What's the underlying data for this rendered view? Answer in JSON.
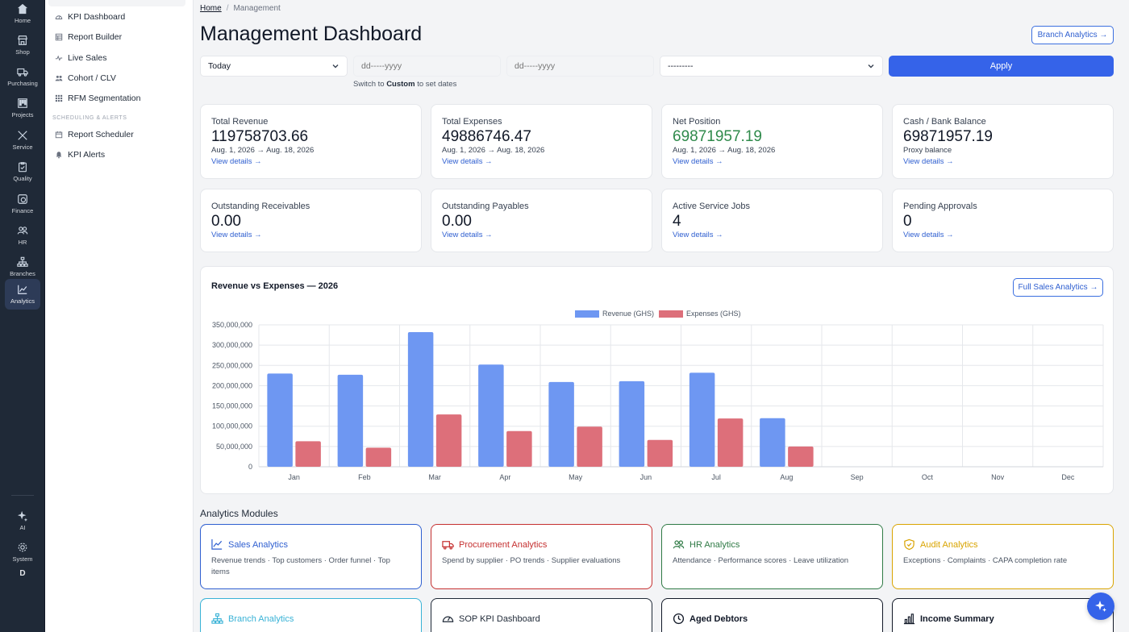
{
  "rail": {
    "items": [
      {
        "label": "Home",
        "icon": "home-icon"
      },
      {
        "label": "Shop",
        "icon": "shop-icon"
      },
      {
        "label": "Purchasing",
        "icon": "truck-icon"
      },
      {
        "label": "Projects",
        "icon": "kanban-icon"
      },
      {
        "label": "Service",
        "icon": "tools-icon"
      },
      {
        "label": "Quality",
        "icon": "clipboard-check-icon"
      },
      {
        "label": "Finance",
        "icon": "finance-icon"
      },
      {
        "label": "HR",
        "icon": "people-icon"
      },
      {
        "label": "Branches",
        "icon": "sitemap-icon"
      },
      {
        "label": "Analytics",
        "icon": "chart-line-icon"
      }
    ],
    "bottom": [
      {
        "label": "AI",
        "icon": "sparkle-icon"
      },
      {
        "label": "System",
        "icon": "gear-icon"
      }
    ],
    "user_initial": "D"
  },
  "subnav": {
    "items": [
      {
        "label": "KPI Dashboard",
        "icon": "gauge-icon"
      },
      {
        "label": "Report Builder",
        "icon": "table-icon"
      },
      {
        "label": "Live Sales",
        "icon": "pulse-icon"
      },
      {
        "label": "Cohort / CLV",
        "icon": "people-icon"
      },
      {
        "label": "RFM Segmentation",
        "icon": "grid-icon"
      }
    ],
    "section_label": "SCHEDULING & ALERTS",
    "section_items": [
      {
        "label": "Report Scheduler",
        "icon": "calendar-icon"
      },
      {
        "label": "KPI Alerts",
        "icon": "bell-icon"
      }
    ]
  },
  "breadcrumb": {
    "home": "Home",
    "current": "Management"
  },
  "page_title": "Management Dashboard",
  "branch_analytics_label": "Branch Analytics →",
  "filters": {
    "period": "Today",
    "date_from_placeholder": "dd-----yyyy",
    "date_to_placeholder": "dd-----yyyy",
    "branch": "---------",
    "apply": "Apply",
    "hint_pre": "Switch to",
    "hint_bold": "Custom",
    "hint_post": "to set dates"
  },
  "kpis": [
    {
      "label": "Total Revenue",
      "value": "119758703.66",
      "sub": "Aug. 1, 2026 → Aug. 18, 2026",
      "link": "View details →"
    },
    {
      "label": "Total Expenses",
      "value": "49886746.47",
      "sub": "Aug. 1, 2026 → Aug. 18, 2026",
      "link": "View details →"
    },
    {
      "label": "Net Position",
      "value": "69871957.19",
      "sub": "Aug. 1, 2026 → Aug. 18, 2026",
      "link": "View details →"
    },
    {
      "label": "Cash / Bank Balance",
      "value": "69871957.19",
      "sub": "Proxy balance",
      "link": "View details →"
    },
    {
      "label": "Outstanding Receivables",
      "value": "0.00",
      "link": "View details →"
    },
    {
      "label": "Outstanding Payables",
      "value": "0.00",
      "link": "View details →"
    },
    {
      "label": "Active Service Jobs",
      "value": "4",
      "link": "View details →"
    },
    {
      "label": "Pending Approvals",
      "value": "0",
      "link": "View details →"
    }
  ],
  "chart": {
    "full_sales_label": "Full Sales Analytics →",
    "colors": {
      "revenue": "#6e97f2",
      "expenses": "#dd6f7a"
    }
  },
  "chart_data": {
    "type": "bar",
    "title": "Revenue vs Expenses — 2026",
    "categories": [
      "Jan",
      "Feb",
      "Mar",
      "Apr",
      "May",
      "Jun",
      "Jul",
      "Aug",
      "Sep",
      "Oct",
      "Nov",
      "Dec"
    ],
    "series": [
      {
        "name": "Revenue (GHS)",
        "values": [
          230000000,
          227000000,
          332000000,
          252000000,
          209000000,
          211000000,
          232000000,
          119758703.66,
          0,
          0,
          0,
          0
        ]
      },
      {
        "name": "Expenses (GHS)",
        "values": [
          63000000,
          47000000,
          129000000,
          88000000,
          99000000,
          66000000,
          119000000,
          49886746.47,
          0,
          0,
          0,
          0
        ]
      }
    ],
    "ylim": [
      0,
      350000000
    ],
    "yticks": [
      "350,000,000",
      "300,000,000",
      "250,000,000",
      "200,000,000",
      "150,000,000",
      "100,000,000",
      "50,000,000",
      "0"
    ],
    "grid": true,
    "legend": "top-center"
  },
  "modules_heading": "Analytics Modules",
  "modules": [
    {
      "title": "Sales Analytics",
      "desc": "Revenue trends · Top customers · Order funnel · Top items",
      "color": "#2f5fd0",
      "icon": "chart-line-icon"
    },
    {
      "title": "Procurement Analytics",
      "desc": "Spend by supplier · PO trends · Supplier evaluations",
      "color": "#c53030",
      "icon": "truck-icon"
    },
    {
      "title": "HR Analytics",
      "desc": "Attendance · Performance scores · Leave utilization",
      "color": "#2f7a45",
      "icon": "people-icon"
    },
    {
      "title": "Audit Analytics",
      "desc": "Exceptions · Complaints · CAPA completion rate",
      "color": "#d9a400",
      "icon": "shield-check-icon"
    },
    {
      "title": "Branch Analytics",
      "color": "#38b2d6",
      "icon": "sitemap-icon"
    },
    {
      "title": "SOP KPI Dashboard",
      "color": "#1f2937",
      "icon": "gauge-icon"
    },
    {
      "title": "Aged Debtors",
      "color": "#111827",
      "icon": "clock-icon"
    },
    {
      "title": "Income Summary",
      "color": "#111827",
      "icon": "bar-chart-icon"
    }
  ]
}
